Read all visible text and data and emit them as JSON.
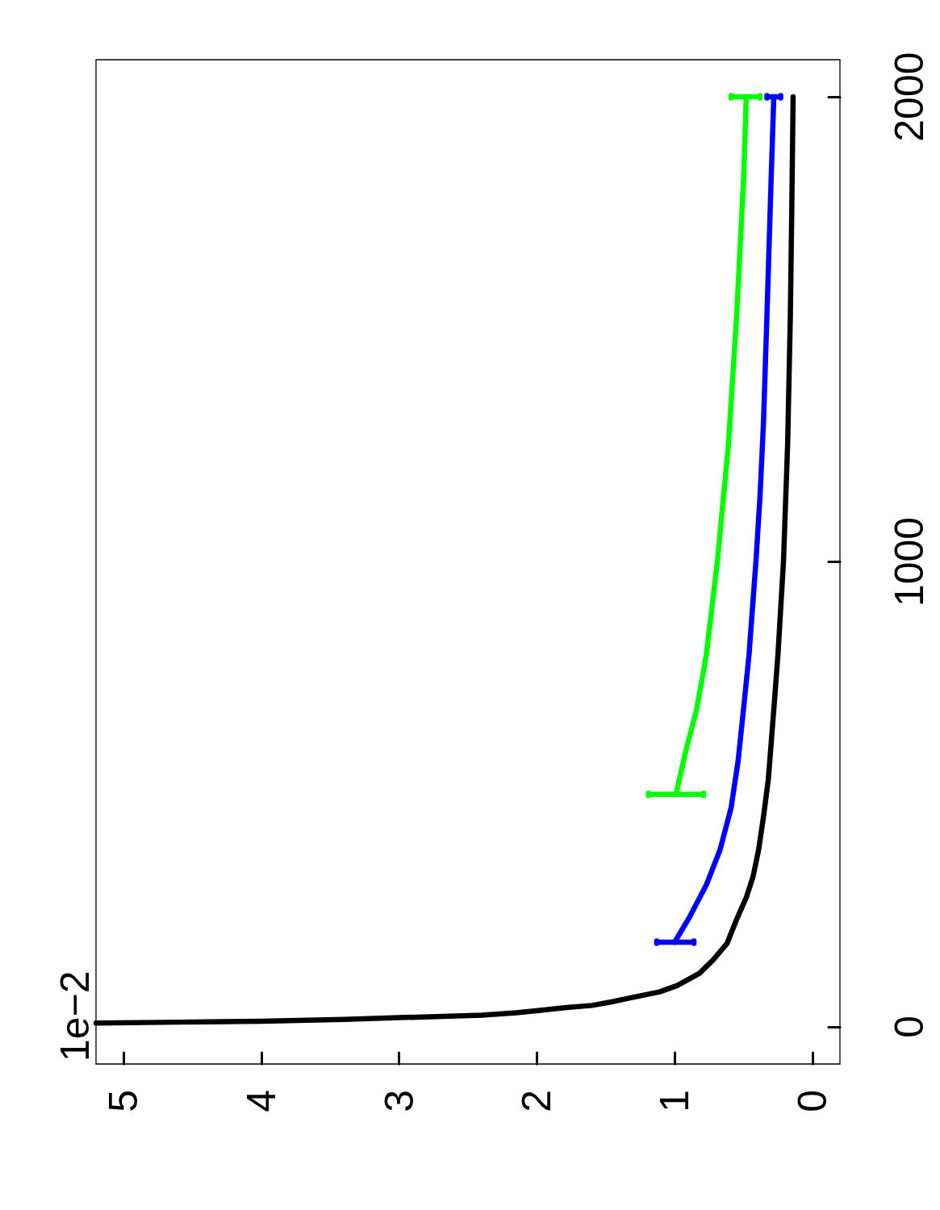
{
  "chart_data": {
    "type": "line",
    "annotations": [
      "1e−2"
    ],
    "xlim": [
      5.2,
      -0.2
    ],
    "xticks": [
      0,
      1,
      2,
      3,
      4,
      5
    ],
    "ylim": [
      -80,
      2080
    ],
    "yticks": [
      0,
      1000,
      2000
    ],
    "grid": false,
    "series": [
      {
        "color": "#000000",
        "x": [
          5.2,
          4.6,
          4.0,
          3.4,
          2.96,
          2.4,
          2.15,
          1.99,
          1.8,
          1.6,
          1.45,
          1.31,
          1.11,
          0.98,
          0.82,
          0.72,
          0.62,
          0.55,
          0.48,
          0.43,
          0.39,
          0.353,
          0.32,
          0.3,
          0.28,
          0.25,
          0.21,
          0.18,
          0.16,
          0.15,
          0.14
        ],
        "values": [
          8,
          10,
          12,
          16,
          20,
          25,
          30,
          35,
          41,
          46,
          54,
          63,
          75,
          89,
          115,
          144,
          179,
          231,
          278,
          324,
          381,
          456,
          532,
          607,
          683,
          800,
          1000,
          1250,
          1529,
          1750,
          2000
        ]
      },
      {
        "color": "#0000ff",
        "x": [
          1.0,
          0.89,
          0.77,
          0.67,
          0.59,
          0.54,
          0.5,
          0.46,
          0.41,
          0.38,
          0.355,
          0.33,
          0.3,
          0.28
        ],
        "values": [
          182,
          237,
          305,
          381,
          471,
          570,
          683,
          800,
          1000,
          1142,
          1300,
          1529,
          1818,
          2000
        ],
        "xerrors": [
          [
            0.86,
            1.13
          ],
          null,
          null,
          null,
          null,
          null,
          null,
          null,
          null,
          null,
          null,
          null,
          null,
          [
            0.23,
            0.33
          ]
        ]
      },
      {
        "color": "#00ff00",
        "x": [
          0.99,
          0.92,
          0.84,
          0.77,
          0.69,
          0.61,
          0.55,
          0.5,
          0.48
        ],
        "values": [
          500,
          592,
          683,
          800,
          1000,
          1250,
          1529,
          1818,
          2000
        ],
        "xerrors": [
          [
            0.79,
            1.19
          ],
          null,
          null,
          null,
          null,
          null,
          null,
          null,
          [
            0.38,
            0.59
          ]
        ]
      }
    ]
  }
}
